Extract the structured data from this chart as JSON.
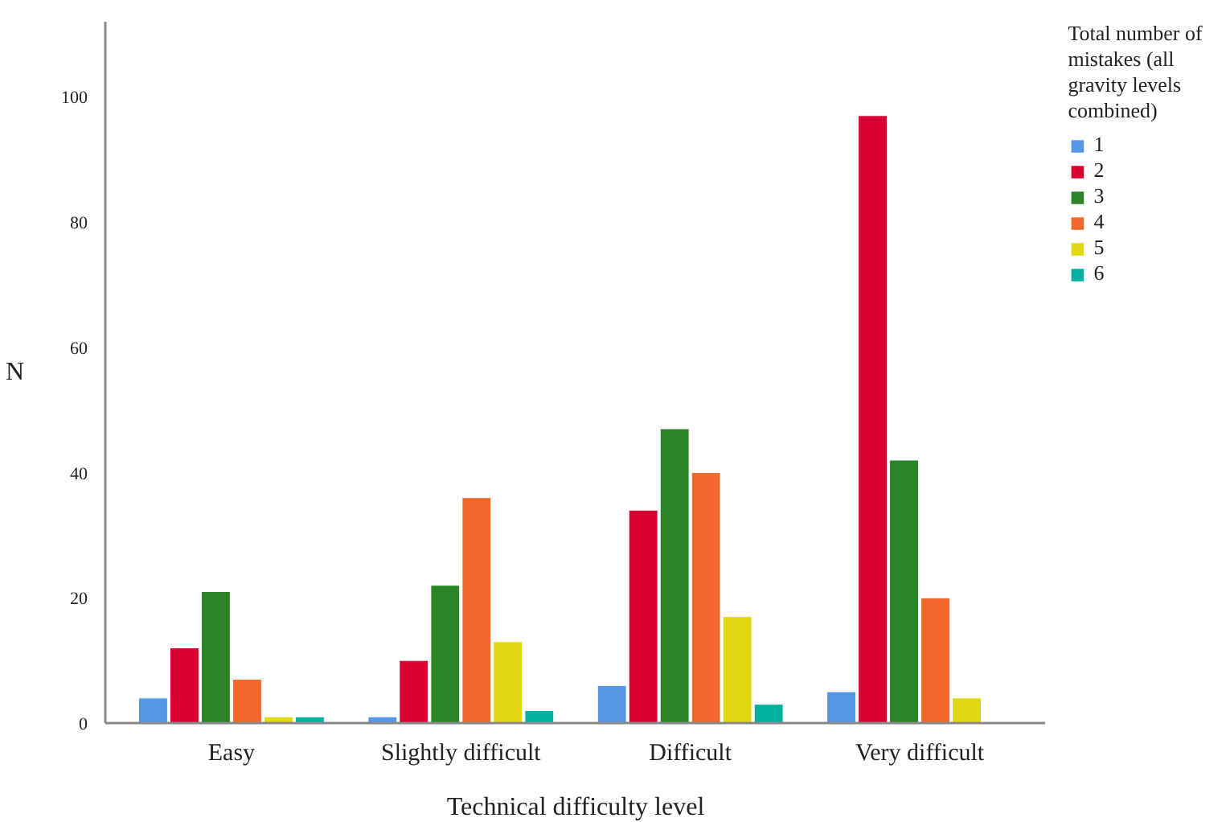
{
  "chart_data": {
    "type": "bar",
    "xlabel": "Technical difficulty level",
    "ylabel": "N",
    "categories": [
      "Easy",
      "Slightly difficult",
      "Difficult",
      "Very difficult"
    ],
    "legend_title": "Total number of mistakes (all gravity levels combined)",
    "series": [
      {
        "name": "1",
        "color": "#5596e6",
        "values": [
          4,
          1,
          6,
          5
        ]
      },
      {
        "name": "2",
        "color": "#d90032",
        "values": [
          12,
          10,
          34,
          97
        ]
      },
      {
        "name": "3",
        "color": "#2b8527",
        "values": [
          21,
          22,
          47,
          42
        ]
      },
      {
        "name": "4",
        "color": "#f2692d",
        "values": [
          7,
          36,
          40,
          20
        ]
      },
      {
        "name": "5",
        "color": "#e2d812",
        "values": [
          1,
          13,
          17,
          4
        ]
      },
      {
        "name": "6",
        "color": "#00b0a0",
        "values": [
          1,
          2,
          3,
          null
        ]
      }
    ],
    "ylim": [
      0,
      112
    ],
    "yticks": [
      0,
      20,
      40,
      60,
      80,
      100
    ],
    "grid": false,
    "legend": "right"
  }
}
